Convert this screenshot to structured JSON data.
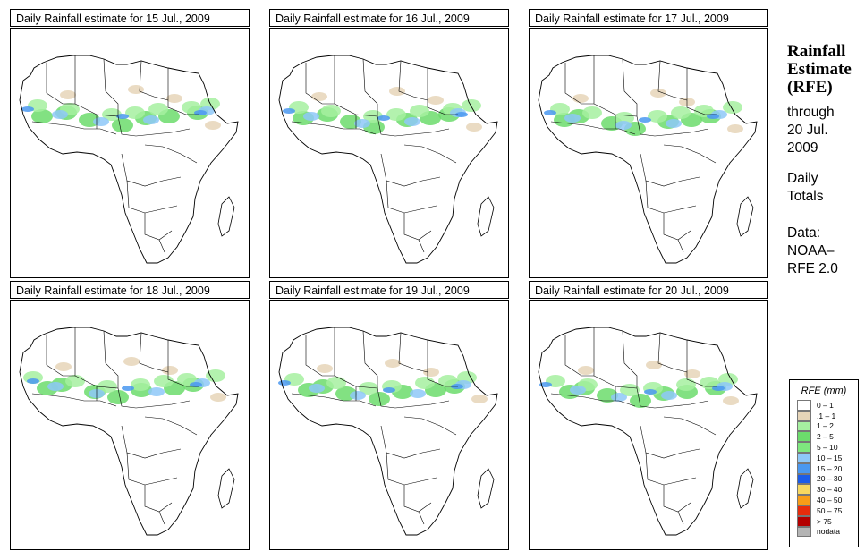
{
  "panels": [
    {
      "title": "Daily Rainfall estimate for  15 Jul., 2009"
    },
    {
      "title": "Daily Rainfall estimate for  16 Jul., 2009"
    },
    {
      "title": "Daily Rainfall estimate for  17 Jul., 2009"
    },
    {
      "title": "Daily Rainfall estimate for  18 Jul., 2009"
    },
    {
      "title": "Daily Rainfall estimate for  19 Jul., 2009"
    },
    {
      "title": "Daily Rainfall estimate for  20 Jul., 2009"
    }
  ],
  "sidebar": {
    "title_line1": "Rainfall",
    "title_line2": "Estimate",
    "title_line3": "(RFE)",
    "through_line1": "through",
    "through_line2": "20 Jul.",
    "through_line3": "2009",
    "totals_line1": "Daily",
    "totals_line2": "Totals",
    "data_line1": "Data:",
    "data_line2": "NOAA–",
    "data_line3": "RFE 2.0"
  },
  "legend": {
    "title": "RFE (mm)",
    "items": [
      {
        "label": "0 – 1",
        "color": "#ffffff"
      },
      {
        "label": ".1 – 1",
        "color": "#e6d5b8"
      },
      {
        "label": "1 – 2",
        "color": "#a6f0a0"
      },
      {
        "label": "2 – 5",
        "color": "#6cdc6c"
      },
      {
        "label": "5 – 10",
        "color": "#7ee87e"
      },
      {
        "label": "10 – 15",
        "color": "#8ec8f8"
      },
      {
        "label": "15 – 20",
        "color": "#4a98f0"
      },
      {
        "label": "20 – 30",
        "color": "#1c5ce8"
      },
      {
        "label": "30 – 40",
        "color": "#f8d860"
      },
      {
        "label": "40 – 50",
        "color": "#f89c18"
      },
      {
        "label": "50 – 75",
        "color": "#e82c0c"
      },
      {
        "label": "> 75",
        "color": "#b40000"
      },
      {
        "label": "nodata",
        "color": "#b4b4b4"
      }
    ]
  }
}
